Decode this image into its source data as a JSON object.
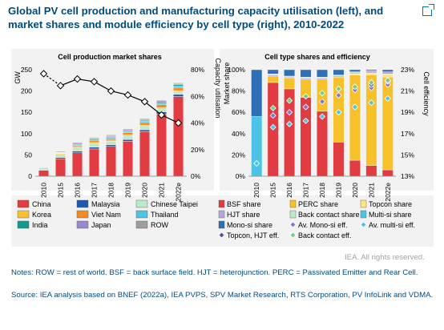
{
  "figure": {
    "title": "Global PV cell production and manufacturing capacity utilisation (left), and market shares and module efficiency by cell type (right), 2010-2022",
    "credit": "IEA. All rights reserved.",
    "notes": "Notes: ROW = rest of world. BSF = back surface field. HJT = heterojunction. PERC = Passivated Emitter and Rear Cell.",
    "source": "Source: IEA analysis based on BNEF (2022a), IEA PVPS, SPV Market Research, RTS Corporation, PV InfoLink and VDMA.",
    "link_icon": "external-link-icon"
  },
  "chart_data": [
    {
      "type": "bar",
      "subtype": "stacked-bar-with-line",
      "title": "Cell production market shares",
      "ylabel": "GW",
      "y2label": "Capacity utilisation",
      "ylim": [
        0,
        250
      ],
      "y2lim": [
        0,
        80
      ],
      "yticks": [
        "0",
        "50",
        "100",
        "150",
        "200",
        "250"
      ],
      "y2ticks": [
        "0%",
        "20%",
        "40%",
        "60%",
        "80%"
      ],
      "categories": [
        "2010",
        "2015",
        "2016",
        "2017",
        "2018",
        "2019",
        "2020",
        "2021",
        "2022e"
      ],
      "series": [
        {
          "name": "China",
          "color": "#e03c41",
          "values": [
            14,
            41,
            55,
            64,
            70,
            82,
            105,
            146,
            187
          ]
        },
        {
          "name": "Malaysia",
          "color": "#1e5aa8",
          "values": [
            1,
            3,
            4,
            4,
            4,
            4,
            4,
            5,
            5
          ]
        },
        {
          "name": "Chinese Taipei",
          "color": "#bfe7c9",
          "values": [
            5,
            7,
            8,
            8,
            8,
            8,
            8,
            7,
            6
          ]
        },
        {
          "name": "Korea",
          "color": "#f6c12a",
          "values": [
            1,
            2,
            3,
            3,
            3,
            3,
            3,
            3,
            3
          ]
        },
        {
          "name": "Viet Nam",
          "color": "#f58a1f",
          "values": [
            0,
            1,
            3,
            4,
            4,
            5,
            6,
            7,
            7
          ]
        },
        {
          "name": "Thailand",
          "color": "#4dc3e6",
          "values": [
            0,
            1,
            2,
            2,
            2,
            3,
            3,
            4,
            4
          ]
        },
        {
          "name": "India",
          "color": "#17988d",
          "values": [
            0,
            1,
            2,
            2,
            2,
            2,
            2,
            3,
            3
          ]
        },
        {
          "name": "Japan",
          "color": "#9a87ce",
          "values": [
            1,
            2,
            2,
            2,
            2,
            2,
            2,
            2,
            2
          ]
        },
        {
          "name": "ROW",
          "color": "#9e9e9e",
          "values": [
            1,
            1,
            1,
            2,
            2,
            2,
            2,
            2,
            2
          ]
        }
      ],
      "line": {
        "name": "Capacity utilisation",
        "axis": "right",
        "values": [
          77,
          68,
          73,
          71,
          64,
          61,
          56,
          46,
          40
        ]
      }
    },
    {
      "type": "bar",
      "subtype": "stacked-percent-with-markers",
      "title": "Cell type shares and efficiency",
      "ylabel": "Market share",
      "y2label": "Cell efficiency",
      "ylim": [
        0,
        100
      ],
      "y2lim": [
        13,
        23
      ],
      "yticks": [
        "0%",
        "20%",
        "40%",
        "60%",
        "80%",
        "100%"
      ],
      "y2ticks": [
        "13%",
        "15%",
        "17%",
        "19%",
        "21%",
        "23%"
      ],
      "categories": [
        "2010",
        "2015",
        "2016",
        "2017",
        "2018",
        "2019",
        "2020",
        "2021",
        "2022e"
      ],
      "series": [
        {
          "name": "BSF share",
          "color": "#e03c41",
          "values": [
            0,
            88,
            82,
            74,
            61,
            32,
            15,
            10,
            6
          ]
        },
        {
          "name": "PERC share",
          "color": "#f6c12a",
          "values": [
            0,
            6,
            10,
            17,
            30,
            61,
            80,
            85,
            87
          ]
        },
        {
          "name": "Topcon share",
          "color": "#fde58c",
          "values": [
            0,
            0,
            0,
            0,
            0,
            0,
            1,
            2,
            3
          ]
        },
        {
          "name": "HJT share",
          "color": "#b4a7dc",
          "values": [
            0,
            1,
            1,
            1,
            1,
            1,
            1,
            2,
            2
          ]
        },
        {
          "name": "Back contact share",
          "color": "#bfe7c9",
          "values": [
            0,
            1,
            1,
            1,
            1,
            1,
            1,
            0,
            0
          ]
        },
        {
          "name": "Multi-si share",
          "color": "#4dc3e6",
          "values": [
            56,
            0,
            0,
            0,
            0,
            0,
            0,
            0,
            0
          ]
        },
        {
          "name": "Mono-si share",
          "color": "#2f6fb5",
          "values": [
            44,
            4,
            6,
            7,
            7,
            5,
            2,
            1,
            2
          ]
        }
      ],
      "markers": [
        {
          "name": "Av. Mono-si eff.",
          "shape": "diamond",
          "color": "#8b6fcf",
          "values": [
            null,
            18.7,
            19.0,
            19.5,
            20.0,
            20.6,
            21.1,
            21.3,
            21.6
          ]
        },
        {
          "name": "Av. multi-si eff.",
          "shape": "diamond",
          "color": "#4dc3e6",
          "values": [
            14.2,
            17.6,
            17.9,
            18.2,
            18.6,
            19.0,
            19.5,
            19.9,
            20.3
          ]
        },
        {
          "name": "Topcon, HJT eff.",
          "shape": "diamond",
          "color": "#5b4aa8",
          "values": [
            null,
            null,
            null,
            null,
            null,
            null,
            null,
            21.6,
            21.9
          ]
        },
        {
          "name": "Back contact eff.",
          "shape": "diamond",
          "color": "#6fcf87",
          "values": [
            null,
            19.4,
            20.1,
            20.5,
            20.8,
            21.2,
            21.4,
            21.8,
            22.0
          ]
        }
      ]
    }
  ]
}
